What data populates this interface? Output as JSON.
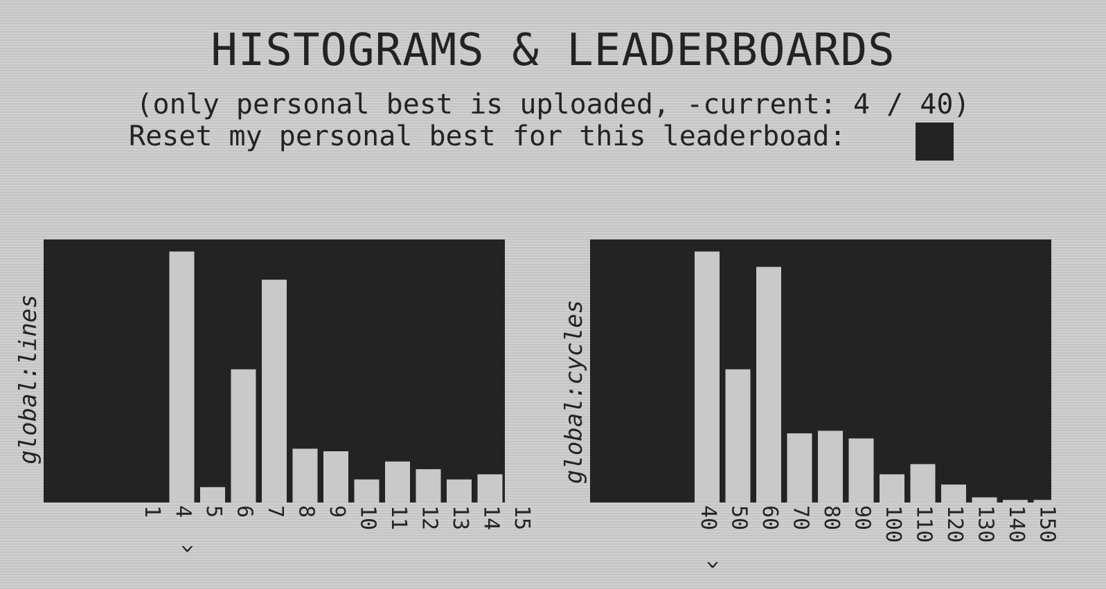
{
  "header": {
    "title": "HISTOGRAMS & LEADERBOARDS",
    "subtitle": "(only personal best is uploaded, -current: 4 / 40)",
    "reset_label": "Reset my personal best for this leaderboad:"
  },
  "colors": {
    "panel": "#232323",
    "bar": "#c9c9c9",
    "background": "#c9c9c9"
  },
  "chart_data": [
    {
      "type": "bar",
      "ylabel": "global:lines",
      "categories": [
        "1",
        "4",
        "5",
        "6",
        "7",
        "8",
        "9",
        "10",
        "11",
        "12",
        "13",
        "14",
        "15"
      ],
      "values": [
        0,
        98,
        6,
        52,
        87,
        21,
        20,
        9,
        16,
        13,
        9,
        11,
        4
      ],
      "ylim": [
        0,
        100
      ],
      "marker": "^",
      "marker_category": "4"
    },
    {
      "type": "bar",
      "ylabel": "global:cycles",
      "categories": [
        "40",
        "50",
        "60",
        "70",
        "80",
        "90",
        "100",
        "110",
        "120",
        "130",
        "140",
        "150"
      ],
      "values": [
        98,
        52,
        92,
        27,
        28,
        25,
        11,
        15,
        7,
        2,
        1,
        1
      ],
      "ylim": [
        0,
        100
      ],
      "marker": "^",
      "marker_category": "40"
    }
  ]
}
